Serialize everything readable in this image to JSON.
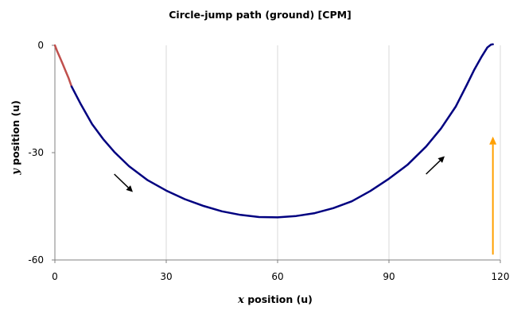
{
  "chart_data": {
    "type": "line",
    "title": "Circle-jump path (ground) [CPM]",
    "xlabel_var": "x",
    "xlabel_rest": " position (u)",
    "ylabel_var": "y",
    "ylabel_rest": " position (u)",
    "xlim": [
      0,
      120
    ],
    "ylim": [
      -60,
      0
    ],
    "xticks": [
      0,
      30,
      60,
      90,
      120
    ],
    "yticks": [
      0,
      -30,
      -60
    ],
    "grid": {
      "x": true,
      "y": false
    },
    "colors": {
      "start_segment": "#c0504d",
      "path": "#000080",
      "direction_arrow": "#000000",
      "jump_arrow": "#ffa000",
      "grid": "#d9d9d9",
      "axis": "#808080"
    },
    "series": [
      {
        "role": "start_segment",
        "x": [
          0,
          0.6,
          1.3,
          2.1,
          2.9,
          3.7,
          4.5
        ],
        "y": [
          0,
          -1.6,
          -3.3,
          -5.2,
          -7.2,
          -9.2,
          -11.5
        ]
      },
      {
        "role": "path",
        "x": [
          4.5,
          7,
          10,
          13,
          16,
          20,
          25,
          30,
          35,
          40,
          45,
          50,
          55,
          60,
          65,
          70,
          75,
          80,
          85,
          90,
          95,
          100,
          104,
          108,
          111,
          113,
          115,
          116.5,
          117.5,
          118
        ],
        "y": [
          -11.5,
          -16.5,
          -22,
          -26.2,
          -29.8,
          -33.8,
          -37.7,
          -40.6,
          -43,
          -44.9,
          -46.4,
          -47.4,
          -48,
          -48.1,
          -47.7,
          -46.9,
          -45.5,
          -43.6,
          -40.7,
          -37.3,
          -33.4,
          -28.3,
          -23.3,
          -17.1,
          -11,
          -6.8,
          -3.1,
          -0.6,
          0.2,
          0.3
        ]
      }
    ],
    "annotations": [
      {
        "type": "direction_arrow",
        "from": [
          16,
          -36
        ],
        "to": [
          21,
          -41
        ]
      },
      {
        "type": "direction_arrow",
        "from": [
          100,
          -36
        ],
        "to": [
          105,
          -31
        ]
      },
      {
        "type": "jump_arrow",
        "from": [
          118,
          -58.5
        ],
        "to": [
          118,
          -25.5
        ]
      }
    ]
  }
}
